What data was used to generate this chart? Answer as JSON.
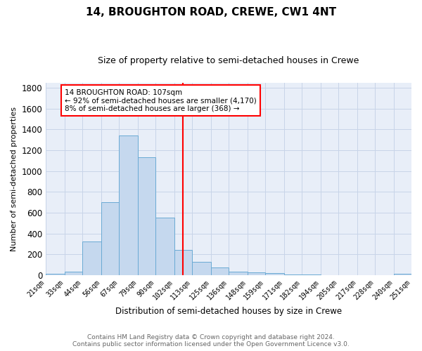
{
  "title1": "14, BROUGHTON ROAD, CREWE, CW1 4NT",
  "title2": "Size of property relative to semi-detached houses in Crewe",
  "xlabel": "Distribution of semi-detached houses by size in Crewe",
  "ylabel": "Number of semi-detached properties",
  "bin_labels": [
    "21sqm",
    "33sqm",
    "44sqm",
    "56sqm",
    "67sqm",
    "79sqm",
    "90sqm",
    "102sqm",
    "113sqm",
    "125sqm",
    "136sqm",
    "148sqm",
    "159sqm",
    "171sqm",
    "182sqm",
    "194sqm",
    "205sqm",
    "217sqm",
    "228sqm",
    "240sqm",
    "251sqm"
  ],
  "bar_heights": [
    10,
    30,
    325,
    700,
    1340,
    1130,
    550,
    240,
    125,
    70,
    30,
    25,
    20,
    5,
    5,
    0,
    0,
    0,
    0,
    15
  ],
  "bar_color": "#c5d8ee",
  "bar_edge_color": "#6aaad4",
  "grid_color": "#c8d4e8",
  "background_color": "#e8eef8",
  "red_line_x": 107,
  "annotation_text1": "14 BROUGHTON ROAD: 107sqm",
  "annotation_text2": "← 92% of semi-detached houses are smaller (4,170)",
  "annotation_text3": "8% of semi-detached houses are larger (368) →",
  "footer1": "Contains HM Land Registry data © Crown copyright and database right 2024.",
  "footer2": "Contains public sector information licensed under the Open Government Licence v3.0.",
  "ylim": [
    0,
    1850
  ],
  "yticks": [
    0,
    200,
    400,
    600,
    800,
    1000,
    1200,
    1400,
    1600,
    1800
  ],
  "bin_edges": [
    21,
    33,
    44,
    56,
    67,
    79,
    90,
    102,
    113,
    125,
    136,
    148,
    159,
    171,
    182,
    194,
    205,
    217,
    228,
    240,
    251
  ]
}
